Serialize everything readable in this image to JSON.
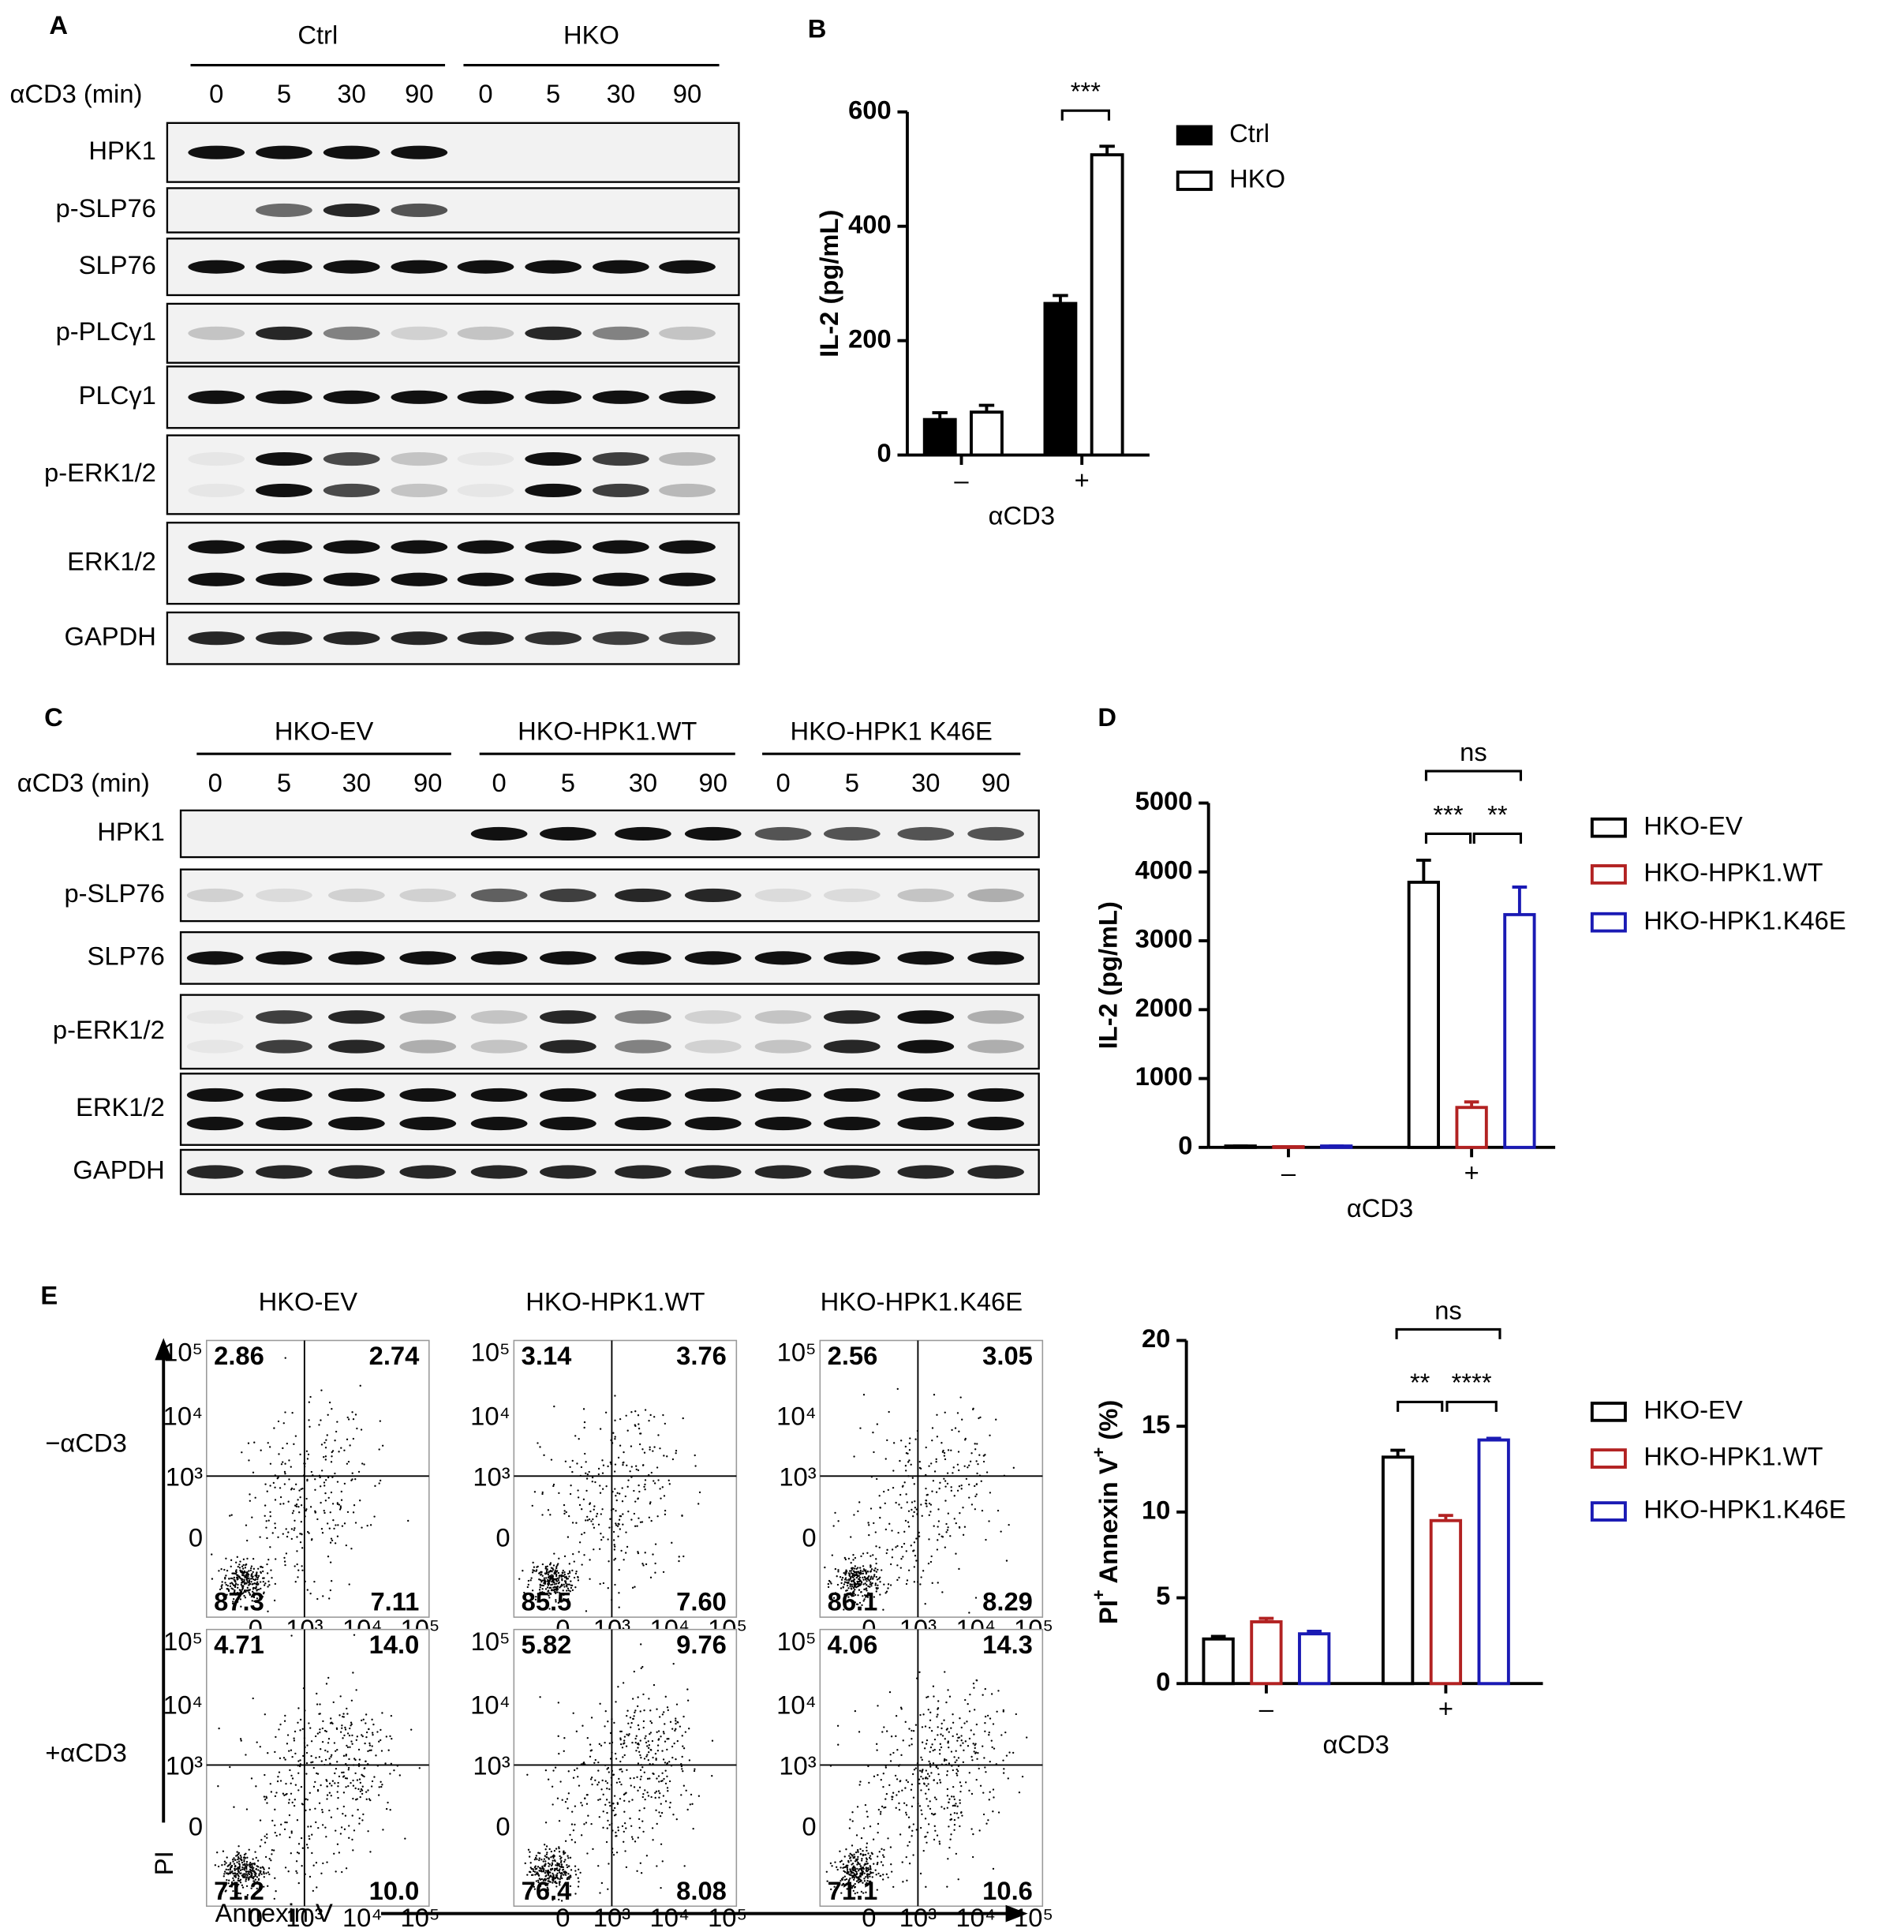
{
  "panel_labels": [
    "A",
    "B",
    "C",
    "D",
    "E"
  ],
  "blots": [
    {
      "groups": [
        "Ctrl",
        "HKO"
      ],
      "time_label": "αCD3 (min)",
      "times": [
        "0",
        "5",
        "30",
        "90",
        "0",
        "5",
        "30",
        "90"
      ],
      "rows": [
        "HPK1",
        "p-SLP76",
        "SLP76",
        "p-PLCγ1",
        "PLCγ1",
        "p-ERK1/2",
        "ERK1/2",
        "GAPDH"
      ]
    },
    {
      "groups": [
        "HKO-EV",
        "HKO-HPK1.WT",
        "HKO-HPK1 K46E"
      ],
      "time_label": "αCD3 (min)",
      "times": [
        "0",
        "5",
        "30",
        "90",
        "0",
        "5",
        "30",
        "90",
        "0",
        "5",
        "30",
        "90"
      ],
      "rows": [
        "HPK1",
        "p-SLP76",
        "SLP76",
        "p-ERK1/2",
        "ERK1/2",
        "GAPDH"
      ]
    }
  ],
  "chart_data": [
    {
      "type": "bar",
      "categories": [
        "–",
        "+"
      ],
      "xlabel": "αCD3",
      "ylabel": "IL-2 (pg/mL)",
      "ylim": [
        0,
        600
      ],
      "yticks": [
        0,
        200,
        400,
        600
      ],
      "series": [
        {
          "name": "Ctrl",
          "color": "#000000",
          "fill": "#000000",
          "values": [
            62,
            265
          ],
          "errors": [
            12,
            14
          ]
        },
        {
          "name": "HKO",
          "color": "#000000",
          "fill": "#ffffff",
          "values": [
            75,
            525
          ],
          "errors": [
            12,
            15
          ]
        }
      ],
      "annotations": [
        "***"
      ]
    },
    {
      "type": "bar",
      "categories": [
        "–",
        "+"
      ],
      "xlabel": "αCD3",
      "ylabel": "IL-2 (pg/mL)",
      "ylim": [
        0,
        5000
      ],
      "yticks": [
        0,
        1000,
        2000,
        3000,
        4000,
        5000
      ],
      "series": [
        {
          "name": "HKO-EV",
          "color": "#000000",
          "fill": "#ffffff",
          "values": [
            20,
            3850
          ],
          "errors": [
            0,
            320
          ]
        },
        {
          "name": "HKO-HPK1.WT",
          "color": "#b22222",
          "fill": "#ffffff",
          "values": [
            10,
            580
          ],
          "errors": [
            0,
            80
          ]
        },
        {
          "name": "HKO-HPK1.K46E",
          "color": "#1a1ab4",
          "fill": "#ffffff",
          "values": [
            20,
            3380
          ],
          "errors": [
            0,
            400
          ]
        }
      ],
      "annotations": [
        "***",
        "**",
        "ns"
      ]
    },
    {
      "type": "bar",
      "categories": [
        "–",
        "+"
      ],
      "xlabel": "αCD3",
      "ylabel": [
        "PI",
        "+",
        " Annexin V",
        "+",
        " (%)"
      ],
      "ylim": [
        0,
        20
      ],
      "yticks": [
        0,
        5,
        10,
        15,
        20
      ],
      "series": [
        {
          "name": "HKO-EV",
          "color": "#000000",
          "fill": "#ffffff",
          "values": [
            2.6,
            13.2
          ],
          "errors": [
            0.15,
            0.4
          ]
        },
        {
          "name": "HKO-HPK1.WT",
          "color": "#b22222",
          "fill": "#ffffff",
          "values": [
            3.6,
            9.5
          ],
          "errors": [
            0.2,
            0.3
          ]
        },
        {
          "name": "HKO-HPK1.K46E",
          "color": "#1a1ab4",
          "fill": "#ffffff",
          "values": [
            2.9,
            14.2
          ],
          "errors": [
            0.15,
            0.1
          ]
        }
      ],
      "annotations": [
        "**",
        "****",
        "ns"
      ]
    }
  ],
  "flow": {
    "columns": [
      "HKO-EV",
      "HKO-HPK1.WT",
      "HKO-HPK1.K46E"
    ],
    "rows": [
      "−αCD3",
      "+αCD3"
    ],
    "ylabel": "PI",
    "xlabel": "Annexin V",
    "axis_ticks": [
      "0",
      "10³",
      "10⁴",
      "10⁵"
    ],
    "plots": [
      [
        [
          "2.86",
          "2.74",
          "87.3",
          "7.11"
        ],
        [
          "3.14",
          "3.76",
          "85.5",
          "7.60"
        ],
        [
          "2.56",
          "3.05",
          "86.1",
          "8.29"
        ]
      ],
      [
        [
          "4.71",
          "14.0",
          "71.2",
          "10.0"
        ],
        [
          "5.82",
          "9.76",
          "76.4",
          "8.08"
        ],
        [
          "4.06",
          "14.3",
          "71.1",
          "10.6"
        ]
      ]
    ]
  }
}
